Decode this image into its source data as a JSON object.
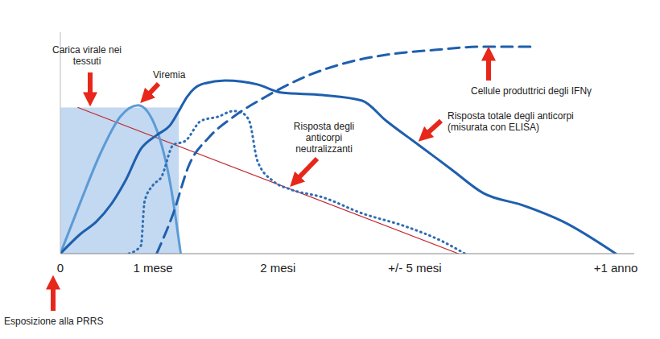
{
  "chart_data": {
    "type": "line",
    "xlim": [
      0,
      6.2
    ],
    "xticks": [
      0,
      {
        "value": 1,
        "label": "1 mese"
      },
      {
        "value": 2.35,
        "label": "2 mesi"
      },
      {
        "value": 3.83,
        "label": "+/- 5 mesi"
      },
      {
        "value": 6,
        "label": "+1 anno"
      }
    ],
    "ylim": [
      0,
      100
    ],
    "tick_labels": "x",
    "grid": false,
    "shaded_region": {
      "x": [
        0,
        1.28
      ],
      "y": [
        0,
        66
      ],
      "color": "#b9d1ef"
    },
    "annotations": [
      "Esposizione alla PRRS"
    ],
    "series": [
      {
        "name": "Carica virale nei tessuti",
        "color": "#c0282d",
        "line_style": "solid",
        "x": [
          0.19,
          4.3
        ],
        "values": [
          66,
          0
        ]
      },
      {
        "name": "Viremia",
        "color": "#5b9bd5",
        "line_style": "solid",
        "x": [
          0,
          0.22,
          0.43,
          0.65,
          0.84,
          1.04,
          1.19,
          1.3
        ],
        "values": [
          0,
          23.6,
          45,
          62,
          67,
          56,
          31,
          0
        ]
      },
      {
        "name": "Risposta totale degli anticorpi (misurata con ELISA)",
        "color": "#1f5fae",
        "line_style": "solid",
        "x": [
          0,
          0.22,
          0.39,
          0.57,
          0.7,
          0.87,
          1.04,
          1.19,
          1.28,
          1.37,
          1.52,
          1.78,
          2.13,
          2.39,
          2.83,
          3.26,
          3.52,
          3.87,
          4.22,
          4.57,
          5.0,
          5.43,
          6.0
        ],
        "values": [
          0,
          9,
          14.5,
          23.6,
          32.7,
          47.3,
          53.5,
          58.2,
          64.4,
          70.9,
          76.4,
          78.2,
          76.4,
          72.7,
          71.6,
          69.1,
          60,
          49.1,
          38.2,
          27.3,
          21.8,
          14.5,
          0
        ]
      },
      {
        "name": "Risposta degli anticorpi neutralizzanti",
        "color": "#2e6db4",
        "line_style": "dotted",
        "x": [
          0.74,
          0.87,
          0.91,
          1.0,
          1.09,
          1.22,
          1.35,
          1.52,
          1.7,
          1.87,
          1.96,
          2.04,
          2.13,
          2.3,
          2.48,
          2.83,
          3.26,
          3.7,
          4.13,
          4.37
        ],
        "values": [
          0,
          3.6,
          23.6,
          30.9,
          34.5,
          49.1,
          50.9,
          60,
          61.8,
          64.4,
          63.6,
          60,
          41.8,
          32.7,
          29.1,
          25.5,
          18.2,
          12.7,
          5.5,
          0
        ]
      },
      {
        "name": "Cellule produttrici degli IFNγ",
        "color": "#1f5fae",
        "line_style": "dashed",
        "x": [
          1.04,
          1.22,
          1.39,
          1.61,
          1.87,
          2.22,
          2.65,
          3.09,
          3.52,
          4.04,
          4.57,
          5.09
        ],
        "values": [
          0,
          18.2,
          40,
          52.7,
          61.8,
          70.9,
          80,
          86.2,
          89.8,
          92,
          93.5,
          93.5
        ]
      }
    ]
  }
}
